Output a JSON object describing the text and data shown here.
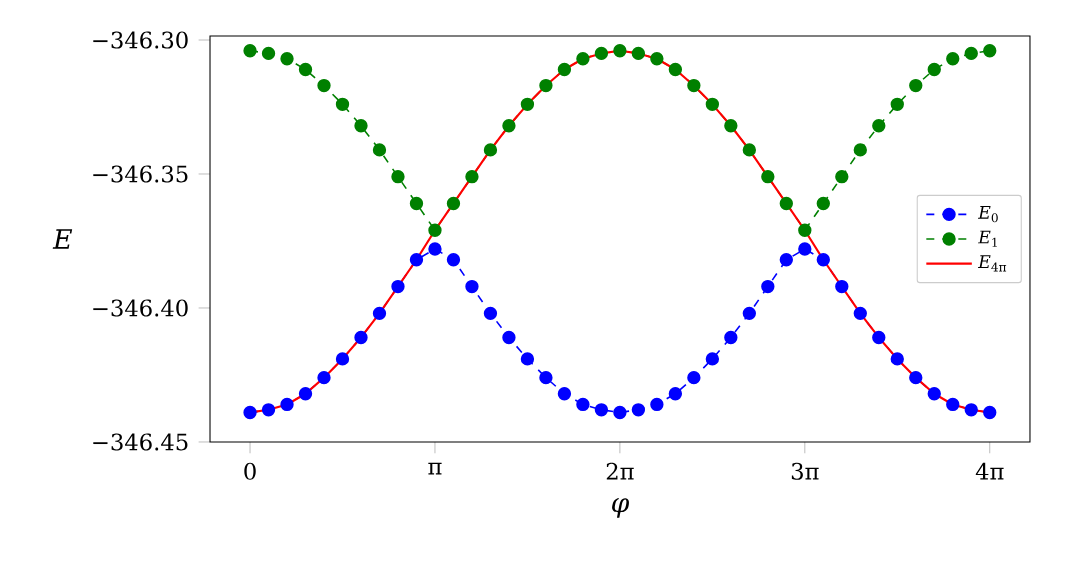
{
  "chart_data": {
    "type": "line",
    "xlabel": "φ",
    "ylabel": "E",
    "x": [
      0,
      0.3142,
      0.6283,
      0.9425,
      1.2566,
      1.5708,
      1.885,
      2.1991,
      2.5133,
      2.8274,
      3.1416,
      3.4558,
      3.7699,
      4.0841,
      4.3982,
      4.7124,
      5.0265,
      5.3407,
      5.6549,
      5.969,
      6.2832,
      6.5973,
      6.9115,
      7.2257,
      7.5398,
      7.854,
      8.1681,
      8.4823,
      8.7965,
      9.1106,
      9.4248,
      9.7389,
      10.0531,
      10.3673,
      10.6814,
      10.9956,
      11.3097,
      11.6239,
      11.9381,
      12.2522,
      12.5664
    ],
    "series": [
      {
        "name": "*E*$_{0}$",
        "color": "#0000ff",
        "marker": "circle",
        "line_style": "dashed",
        "values": [
          -346.439,
          -346.438,
          -346.436,
          -346.432,
          -346.426,
          -346.419,
          -346.411,
          -346.402,
          -346.392,
          -346.382,
          -346.378,
          -346.382,
          -346.392,
          -346.402,
          -346.411,
          -346.419,
          -346.426,
          -346.432,
          -346.436,
          -346.438,
          -346.439,
          -346.438,
          -346.436,
          -346.432,
          -346.426,
          -346.419,
          -346.411,
          -346.402,
          -346.392,
          -346.382,
          -346.378,
          -346.382,
          -346.392,
          -346.402,
          -346.411,
          -346.419,
          -346.426,
          -346.432,
          -346.436,
          -346.438,
          -346.439
        ]
      },
      {
        "name": "*E*$_{1}$",
        "color": "#008000",
        "marker": "circle",
        "line_style": "dashed",
        "values": [
          -346.304,
          -346.305,
          -346.307,
          -346.311,
          -346.317,
          -346.324,
          -346.332,
          -346.341,
          -346.351,
          -346.361,
          -346.371,
          -346.361,
          -346.351,
          -346.341,
          -346.332,
          -346.324,
          -346.317,
          -346.311,
          -346.307,
          -346.305,
          -346.304,
          -346.305,
          -346.307,
          -346.311,
          -346.317,
          -346.324,
          -346.332,
          -346.341,
          -346.351,
          -346.361,
          -346.371,
          -346.361,
          -346.351,
          -346.341,
          -346.332,
          -346.324,
          -346.317,
          -346.311,
          -346.307,
          -346.305,
          -346.304
        ]
      },
      {
        "name": "*E*$_{4π}$",
        "color": "#ff0000",
        "marker": "none",
        "line_style": "solid",
        "values": [
          -346.439,
          -346.438,
          -346.436,
          -346.432,
          -346.426,
          -346.419,
          -346.411,
          -346.402,
          -346.392,
          -346.382,
          -346.371,
          -346.361,
          -346.351,
          -346.341,
          -346.332,
          -346.324,
          -346.317,
          -346.311,
          -346.307,
          -346.305,
          -346.304,
          -346.305,
          -346.307,
          -346.311,
          -346.317,
          -346.324,
          -346.332,
          -346.341,
          -346.351,
          -346.361,
          -346.371,
          -346.382,
          -346.392,
          -346.402,
          -346.411,
          -346.419,
          -346.426,
          -346.432,
          -346.436,
          -346.438,
          -346.439
        ]
      }
    ],
    "xlim": [
      -0.68,
      13.25
    ],
    "ylim": [
      -346.45,
      -346.2985
    ],
    "xticks": [
      0,
      {
        "value": 3.1416,
        "label": "π"
      },
      {
        "value": 6.2832,
        "label": "2π"
      },
      {
        "value": 9.4248,
        "label": "3π"
      },
      {
        "value": 12.5664,
        "label": "4π"
      }
    ],
    "yticks": [
      {
        "value": -346.45,
        "label": "−346.45"
      },
      {
        "value": -346.4,
        "label": "−346.40"
      },
      {
        "value": -346.35,
        "label": "−346.35"
      },
      {
        "value": -346.3,
        "label": "−346.30"
      }
    ],
    "legend": "right"
  }
}
